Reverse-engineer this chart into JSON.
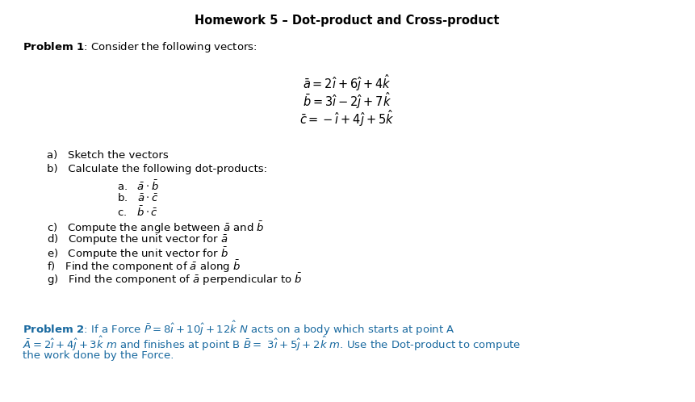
{
  "title": "Homework 5 – Dot-product and Cross-product",
  "background_color": "#ffffff",
  "text_color": "#000000",
  "blue_color": "#1a6aa0",
  "fig_width": 8.61,
  "fig_height": 4.98,
  "dpi": 100
}
